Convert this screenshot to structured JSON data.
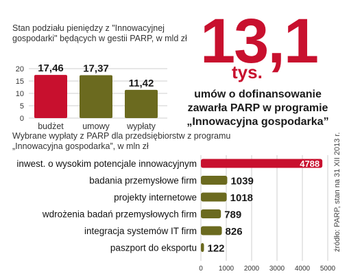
{
  "headline": {
    "number": "13,1",
    "unit": "tys.",
    "description": "umów o dofinansowanie zawarła PARP w programie „Innowacyjna gospodarka”"
  },
  "source": "źródło: PARP, stan na 31 XII 2013 r.",
  "colors": {
    "red": "#c8102e",
    "olive": "#6b6a1f",
    "grid": "#cfcfcf"
  },
  "chart_data": [
    {
      "type": "bar",
      "title": "Stan podziału pieniędzy z \"Innowacyjnej gospodarki\" będących w gestii PARP, w mld zł",
      "categories": [
        "budżet",
        "umowy",
        "wypłaty"
      ],
      "values": [
        17.46,
        17.37,
        11.42
      ],
      "value_labels": [
        "17,46",
        "17,37",
        "11,42"
      ],
      "bar_colors": [
        "#c8102e",
        "#6b6a1f",
        "#6b6a1f"
      ],
      "yticks": [
        "0",
        "5",
        "10",
        "15",
        "20"
      ],
      "ylim": [
        0,
        20
      ]
    },
    {
      "type": "bar",
      "orientation": "horizontal",
      "title": "Wybrane wypłaty z PARP dla przedsiębiorstw z programu „Innowacyjna gospodarka”, w mln zł",
      "categories": [
        "inwest. o wysokim potencjale innowacyjnym",
        "badania przemysłowe firm",
        "projekty internetowe",
        "wdrożenia badań przemysłowych firm",
        "integracja systemów IT firm",
        "paszport do eksportu"
      ],
      "values": [
        4788,
        1039,
        1018,
        789,
        826,
        122
      ],
      "value_labels": [
        "4788",
        "1039",
        "1018",
        "789",
        "826",
        "122"
      ],
      "bar_colors": [
        "#c8102e",
        "#6b6a1f",
        "#6b6a1f",
        "#6b6a1f",
        "#6b6a1f",
        "#6b6a1f"
      ],
      "xticks": [
        "0",
        "1000",
        "2000",
        "3000",
        "4000",
        "5000"
      ],
      "xlim": [
        0,
        5000
      ]
    }
  ]
}
